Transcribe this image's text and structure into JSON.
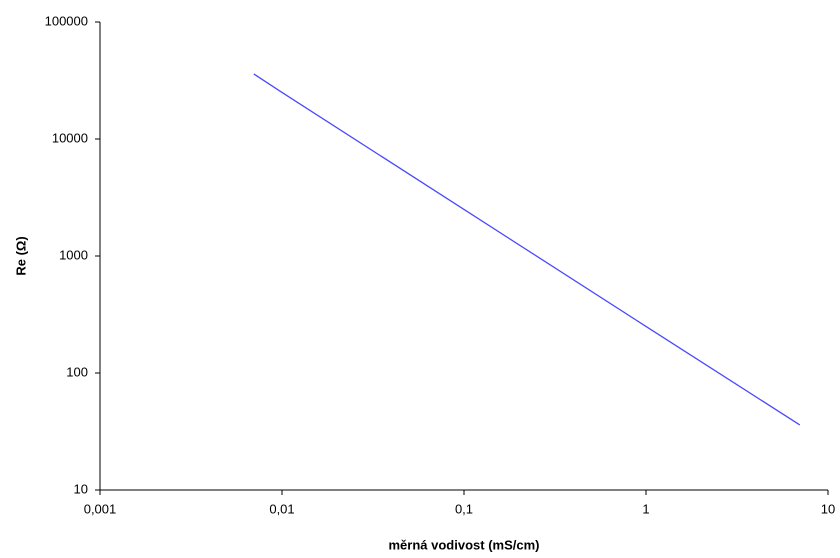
{
  "chart_data": {
    "type": "line",
    "xlabel": "měrná vodivost (mS/cm)",
    "ylabel": "Re (Ω)",
    "x": [
      0.007,
      0.01,
      0.1,
      1,
      7
    ],
    "series": [
      {
        "name": "Re",
        "color": "#4a4aff",
        "values": [
          36000,
          25000,
          2500,
          250,
          36
        ]
      }
    ],
    "xscale": "log",
    "yscale": "log",
    "xlim": [
      0.001,
      10
    ],
    "ylim": [
      10,
      100000
    ],
    "xticks": [
      {
        "value": 0.001,
        "label": "0,001"
      },
      {
        "value": 0.01,
        "label": "0,01"
      },
      {
        "value": 0.1,
        "label": "0,1"
      },
      1,
      10
    ],
    "yticks": [
      10,
      100,
      1000,
      10000,
      100000
    ],
    "grid": false,
    "legend": false
  }
}
